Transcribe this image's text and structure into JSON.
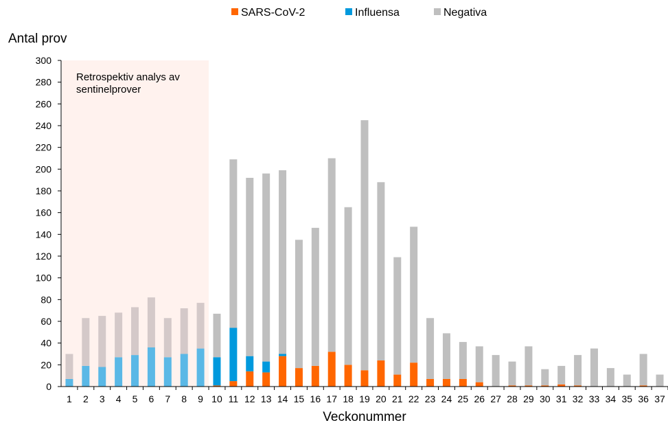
{
  "chart_data": {
    "type": "bar",
    "stacked": true,
    "categories": [
      "1",
      "2",
      "3",
      "4",
      "5",
      "6",
      "7",
      "8",
      "9",
      "10",
      "11",
      "12",
      "13",
      "14",
      "15",
      "16",
      "17",
      "18",
      "19",
      "20",
      "21",
      "22",
      "23",
      "24",
      "25",
      "26",
      "27",
      "28",
      "29",
      "30",
      "31",
      "32",
      "33",
      "34",
      "35",
      "36",
      "37"
    ],
    "series": [
      {
        "name": "SARS-CoV-2",
        "color": "#ff6600",
        "values": [
          0,
          0,
          0,
          0,
          0,
          0,
          0,
          0,
          0,
          1,
          5,
          14,
          13,
          28,
          17,
          19,
          32,
          20,
          15,
          24,
          11,
          22,
          7,
          7,
          7,
          4,
          0,
          1,
          1,
          1,
          2,
          1,
          0,
          0,
          0,
          1,
          0
        ]
      },
      {
        "name": "Influensa",
        "color": "#0099dd",
        "values": [
          7,
          19,
          18,
          27,
          29,
          36,
          27,
          30,
          35,
          26,
          49,
          14,
          10,
          2,
          0,
          0,
          0,
          0,
          0,
          0,
          0,
          0,
          0,
          0,
          0,
          0,
          0,
          0,
          0,
          0,
          0,
          0,
          0,
          0,
          0,
          0,
          0
        ]
      },
      {
        "name": "Negativa",
        "color": "#bfbfbf",
        "values": [
          23,
          44,
          47,
          41,
          44,
          46,
          36,
          42,
          42,
          40,
          155,
          164,
          173,
          169,
          118,
          127,
          178,
          145,
          230,
          164,
          108,
          125,
          56,
          42,
          34,
          33,
          29,
          22,
          36,
          15,
          17,
          28,
          35,
          17,
          11,
          29,
          11
        ]
      }
    ],
    "retrospective": {
      "from": "1",
      "to": "9",
      "label": "Retrospektiv analys av sentinelprover",
      "shade_color": "#fff2ee"
    },
    "xlabel": "Veckonummer",
    "ylabel": "Antal prov",
    "yticks": [
      "0",
      "20",
      "40",
      "60",
      "80",
      "100",
      "120",
      "140",
      "160",
      "180",
      "200",
      "220",
      "240",
      "260",
      "280",
      "300"
    ],
    "ylim": [
      0,
      300
    ],
    "grid": false,
    "legend": "top-center"
  }
}
